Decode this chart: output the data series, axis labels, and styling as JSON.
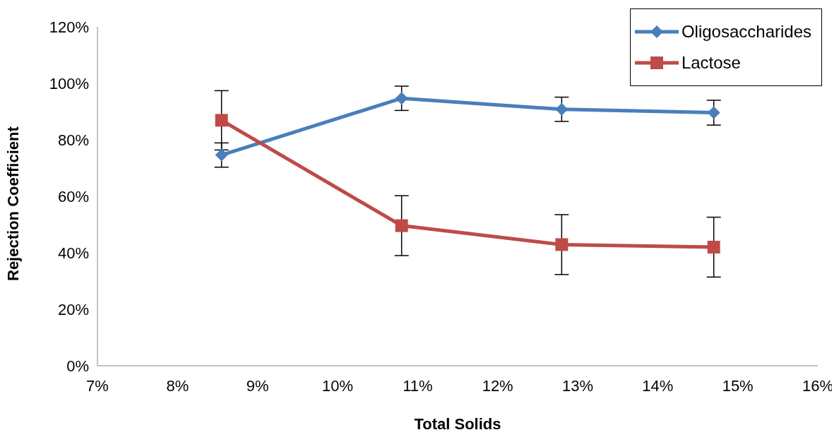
{
  "chart_data": {
    "type": "line",
    "xlabel": "Total Solids",
    "ylabel": "Rejection Coefficient",
    "x": [
      8.55,
      10.8,
      12.8,
      14.7
    ],
    "series": [
      {
        "name": "Oligosaccharides",
        "color": "#4a7ebb",
        "values": [
          74.6,
          94.7,
          90.8,
          89.6
        ],
        "errors": [
          4.3,
          4.3,
          4.3,
          4.4
        ],
        "marker": "diamond"
      },
      {
        "name": "Lactose",
        "color": "#be4b48",
        "values": [
          86.9,
          49.6,
          42.9,
          42.0
        ],
        "errors": [
          10.5,
          10.6,
          10.6,
          10.6
        ],
        "marker": "square"
      }
    ],
    "xlim": [
      7,
      16
    ],
    "xticks": [
      {
        "value": 7,
        "label": "7%"
      },
      {
        "value": 8,
        "label": "8%"
      },
      {
        "value": 9,
        "label": "9%"
      },
      {
        "value": 10,
        "label": "10%"
      },
      {
        "value": 11,
        "label": "11%"
      },
      {
        "value": 12,
        "label": "12%"
      },
      {
        "value": 13,
        "label": "13%"
      },
      {
        "value": 14,
        "label": "14%"
      },
      {
        "value": 15,
        "label": "15%"
      },
      {
        "value": 16,
        "label": "16%"
      }
    ],
    "ylim": [
      0,
      120
    ],
    "yticks": [
      {
        "value": 0,
        "label": "0%"
      },
      {
        "value": 20,
        "label": "20%"
      },
      {
        "value": 40,
        "label": "40%"
      },
      {
        "value": 60,
        "label": "60%"
      },
      {
        "value": 80,
        "label": "80%"
      },
      {
        "value": 100,
        "label": "100%"
      },
      {
        "value": 120,
        "label": "120%"
      }
    ],
    "grid": false,
    "legend": "top right",
    "line_style": "solid"
  }
}
